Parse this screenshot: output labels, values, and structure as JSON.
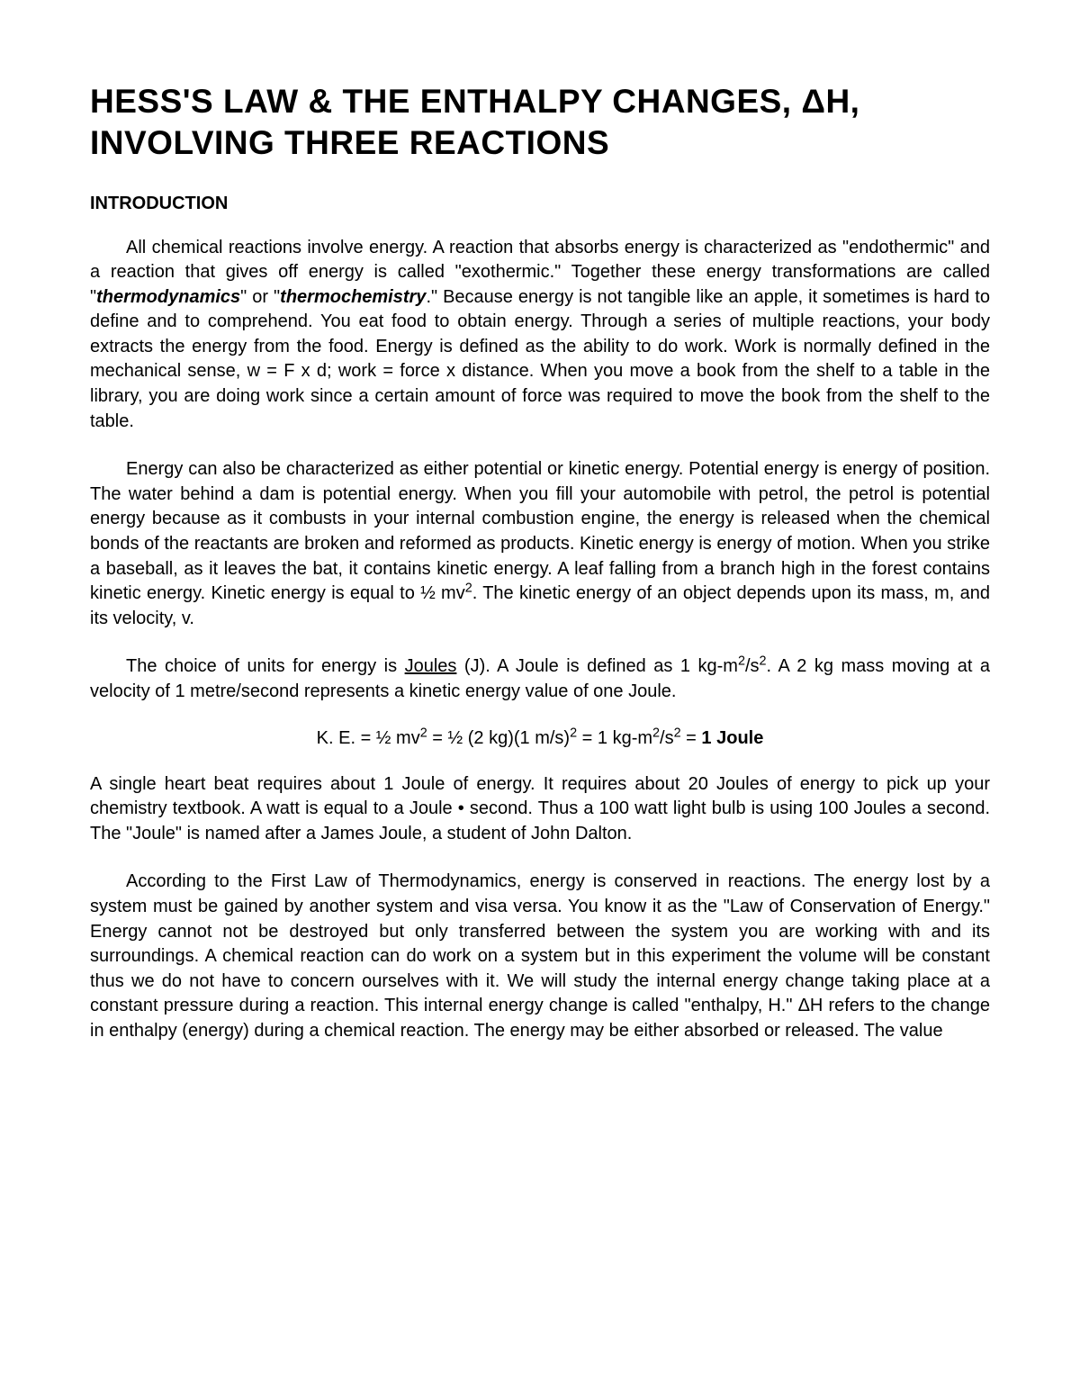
{
  "title": "HESS'S LAW & THE ENTHALPY CHANGES, ΔH, INVOLVING THREE REACTIONS",
  "section_heading": "INTRODUCTION",
  "p1_a": "All chemical reactions involve energy. A reaction that absorbs energy is characterized as \"endothermic\" and a reaction that gives off energy is called \"exothermic.\" Together these energy transformations are called \"",
  "p1_term1": "thermodynamics",
  "p1_b": "\" or \"",
  "p1_term2": "thermochemistry",
  "p1_c": ".\" Because energy is not tangible like an apple, it sometimes is hard to define and to comprehend. You eat food to obtain energy. Through a series of multiple reactions, your body extracts the energy from the food. Energy is defined as the ability to do work. Work is normally defined in the mechanical sense, w = F x d; work = force x distance. When you move a book from the shelf to a table in the library, you are doing work since a certain amount of force was required to move the book from the shelf to the table.",
  "p2_a": "Energy can also be characterized as either potential or kinetic energy. Potential energy is energy of position. The water behind a dam is potential energy. When you fill your automobile with petrol, the petrol is potential energy because as it combusts in your internal combustion engine, the energy is released when the chemical bonds of the reactants are broken and reformed as products. Kinetic energy is energy of motion. When you strike a baseball, as it leaves the bat, it contains kinetic energy. A leaf falling from a branch high in the forest contains kinetic energy. Kinetic energy is equal to ½ mv",
  "p2_sup": "2",
  "p2_b": ". The kinetic energy of an object depends upon its mass, m, and its velocity, v.",
  "p3_a": "The choice of units for energy is ",
  "p3_joules": "Joules",
  "p3_b": " (J). A Joule is defined as 1 kg-m",
  "p3_sup1": "2",
  "p3_c": "/s",
  "p3_sup2": "2",
  "p3_d": ". A 2 kg mass moving at a velocity of 1 metre/second represents a kinetic energy value of one Joule.",
  "eq_a": "K. E. = ½ mv",
  "eq_s1": "2",
  "eq_b": "  =  ½ (2 kg)(1 m/s)",
  "eq_s2": "2",
  "eq_c": " = 1 kg-m",
  "eq_s3": "2",
  "eq_d": "/s",
  "eq_s4": "2",
  "eq_e": " =  ",
  "eq_result": "1 Joule",
  "p4": "A single heart beat requires about 1 Joule of energy. It requires about 20 Joules of energy to pick up your chemistry textbook. A watt is equal to a Joule • second.  Thus a 100 watt light bulb is using 100 Joules a second. The \"Joule\" is named after a James Joule, a student of John Dalton.",
  "p5": "According to the First Law of Thermodynamics, energy is conserved in reactions. The energy lost by a system must be gained by another system and visa versa. You know it as the \"Law of Conservation of Energy.\" Energy cannot not be destroyed but only transferred between the system you are working with and its surroundings. A chemical reaction can do work on a system but in this experiment the volume will be constant thus we do not have to concern ourselves with it. We will study the internal energy change taking place at a constant pressure during a reaction. This internal energy change is called \"enthalpy, H.\" ΔH refers to the change in enthalpy (energy) during a chemical reaction. The energy may be either absorbed or released. The value",
  "colors": {
    "background": "#ffffff",
    "text": "#000000"
  },
  "typography": {
    "title_fontsize": 37,
    "heading_fontsize": 20,
    "body_fontsize": 20,
    "font_family": "Arial, Helvetica, sans-serif"
  }
}
